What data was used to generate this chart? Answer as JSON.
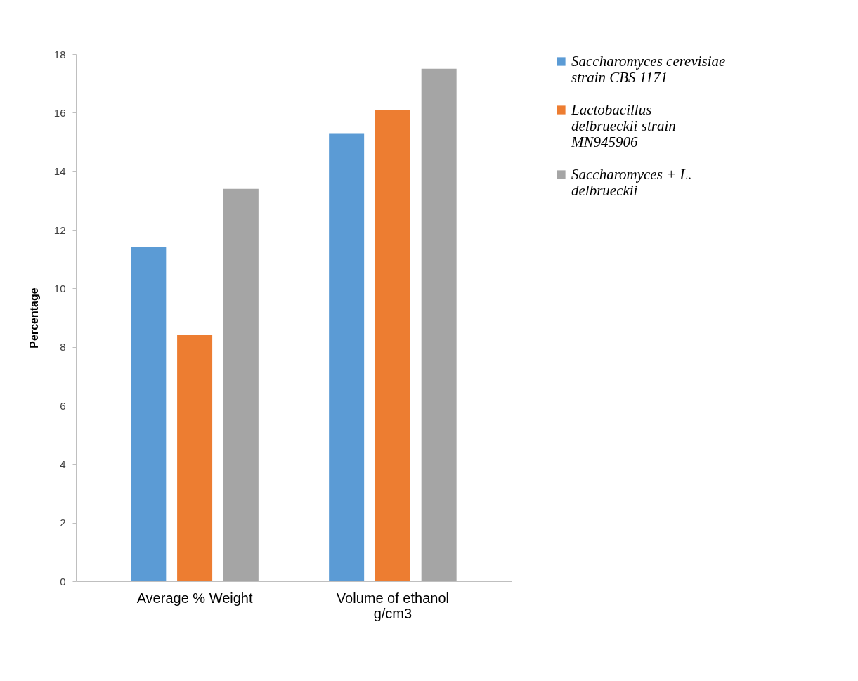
{
  "chart_data": {
    "type": "bar",
    "ylabel": "Percentage",
    "categories": [
      "Average % Weight",
      "Volume of ethanol g/cm3"
    ],
    "series": [
      {
        "name": "Saccharomyces cerevisiae strain CBS 1171",
        "color": "#5b9bd5",
        "values": [
          11.4,
          15.3
        ]
      },
      {
        "name": "Lactobacillus delbrueckii strain MN945906",
        "color": "#ed7d31",
        "values": [
          8.4,
          16.1
        ]
      },
      {
        "name": "Saccharomyces + L. delbrueckii",
        "color": "#a5a5a5",
        "values": [
          13.4,
          17.5
        ]
      }
    ],
    "ylim": [
      0,
      18
    ],
    "yticks": [
      0,
      2,
      4,
      6,
      8,
      10,
      12,
      14,
      16,
      18
    ],
    "grid": false,
    "legend": "right"
  }
}
